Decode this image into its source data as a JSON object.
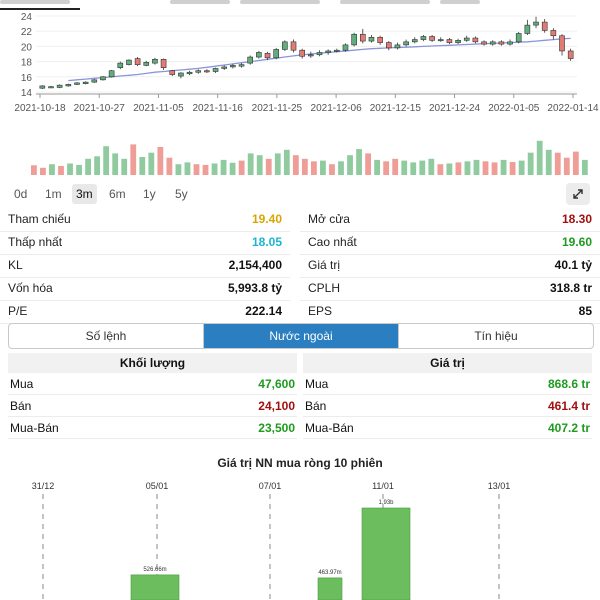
{
  "chart_data": [
    {
      "type": "candlestick",
      "yticks": [
        14,
        16,
        18,
        20,
        22,
        24
      ],
      "ylim": [
        14,
        24
      ],
      "x_ticks": [
        "2021-10-18",
        "2021-10-27",
        "2021-11-05",
        "2021-11-16",
        "2021-11-25",
        "2021-12-06",
        "2021-12-15",
        "2021-12-24",
        "2022-01-05",
        "2022-01-14"
      ],
      "ma": [
        15.5,
        15.6,
        15.7,
        15.8,
        15.9,
        16.0,
        16.1,
        16.2,
        16.3,
        16.45,
        16.6,
        16.7,
        16.8,
        16.9,
        17.0,
        17.1,
        17.25,
        17.4,
        17.55,
        17.7,
        17.85,
        18.0,
        18.15,
        18.3,
        18.45,
        18.6,
        18.75,
        18.9,
        19.0,
        19.1,
        19.2,
        19.3,
        19.4,
        19.5,
        19.6,
        19.7,
        19.75,
        19.8,
        19.85,
        19.9,
        19.95,
        20.0,
        20.05,
        20.1,
        20.15,
        20.2,
        20.25,
        20.3,
        20.35,
        20.4,
        20.45,
        20.5,
        20.55,
        20.6,
        20.7,
        20.8,
        20.9,
        21.0,
        21.05
      ],
      "candles": [
        [
          14.5,
          14.8,
          14.9,
          14.4
        ],
        [
          14.7,
          14.7,
          14.8,
          14.5
        ],
        [
          14.6,
          14.9,
          15.0,
          14.5
        ],
        [
          14.8,
          15.0,
          15.1,
          14.7
        ],
        [
          15.0,
          15.2,
          15.3,
          14.9
        ],
        [
          15.1,
          15.3,
          15.4,
          15.0
        ],
        [
          15.3,
          15.6,
          15.7,
          15.2
        ],
        [
          15.6,
          16.0,
          16.1,
          15.5
        ],
        [
          16.0,
          16.8,
          16.9,
          15.9
        ],
        [
          17.2,
          17.8,
          18.0,
          17.0
        ],
        [
          17.6,
          18.2,
          18.3,
          17.5
        ],
        [
          18.4,
          17.6,
          18.6,
          17.4
        ],
        [
          17.5,
          17.9,
          18.1,
          17.4
        ],
        [
          17.8,
          18.3,
          18.5,
          17.6
        ],
        [
          18.3,
          17.2,
          18.4,
          16.9
        ],
        [
          16.8,
          16.3,
          16.9,
          16.1
        ],
        [
          16.1,
          16.5,
          16.6,
          15.8
        ],
        [
          16.4,
          16.6,
          16.8,
          16.2
        ],
        [
          16.6,
          16.8,
          17.0,
          16.4
        ],
        [
          16.8,
          16.7,
          17.0,
          16.5
        ],
        [
          16.7,
          17.1,
          17.2,
          16.5
        ],
        [
          17.1,
          17.3,
          17.5,
          16.9
        ],
        [
          17.3,
          17.5,
          17.7,
          17.1
        ],
        [
          17.4,
          17.6,
          17.8,
          17.2
        ],
        [
          17.8,
          18.6,
          18.8,
          17.6
        ],
        [
          18.6,
          19.2,
          19.4,
          18.4
        ],
        [
          19.1,
          18.5,
          19.3,
          18.2
        ],
        [
          18.5,
          19.6,
          19.8,
          18.3
        ],
        [
          19.6,
          20.6,
          20.8,
          19.4
        ],
        [
          20.6,
          19.5,
          20.9,
          19.2
        ],
        [
          19.5,
          18.7,
          19.7,
          18.4
        ],
        [
          18.8,
          18.9,
          19.3,
          18.5
        ],
        [
          18.9,
          19.2,
          19.5,
          18.7
        ],
        [
          19.2,
          19.4,
          19.6,
          18.9
        ],
        [
          19.4,
          19.5,
          19.7,
          19.2
        ],
        [
          19.5,
          20.2,
          20.4,
          19.3
        ],
        [
          20.2,
          21.6,
          21.8,
          20.0
        ],
        [
          21.6,
          20.7,
          22.3,
          20.4
        ],
        [
          20.7,
          21.2,
          21.5,
          20.5
        ],
        [
          21.2,
          20.5,
          21.4,
          20.2
        ],
        [
          20.5,
          19.8,
          20.7,
          19.5
        ],
        [
          19.8,
          20.2,
          20.5,
          19.6
        ],
        [
          20.2,
          20.6,
          20.9,
          20.0
        ],
        [
          20.6,
          20.9,
          21.2,
          20.4
        ],
        [
          20.9,
          21.3,
          21.5,
          20.7
        ],
        [
          21.3,
          20.8,
          21.5,
          20.6
        ],
        [
          20.8,
          20.9,
          21.2,
          20.6
        ],
        [
          20.9,
          20.5,
          21.1,
          20.3
        ],
        [
          20.5,
          20.8,
          21.0,
          20.3
        ],
        [
          20.8,
          21.1,
          21.4,
          20.6
        ],
        [
          21.1,
          20.6,
          21.3,
          20.4
        ],
        [
          20.6,
          20.3,
          20.8,
          20.1
        ],
        [
          20.3,
          20.6,
          20.8,
          20.1
        ],
        [
          20.6,
          20.3,
          20.8,
          20.1
        ],
        [
          20.3,
          20.6,
          20.9,
          20.1
        ],
        [
          20.6,
          21.7,
          21.9,
          20.4
        ],
        [
          21.7,
          22.8,
          23.5,
          21.5
        ],
        [
          22.8,
          23.2,
          23.9,
          22.4
        ],
        [
          23.2,
          22.1,
          23.6,
          21.8
        ],
        [
          22.1,
          21.4,
          22.4,
          20.9
        ],
        [
          21.4,
          19.4,
          21.6,
          18.8
        ],
        [
          19.4,
          18.4,
          19.7,
          18.1
        ]
      ],
      "volume": [
        {
          "v": 0.27,
          "up": false
        },
        {
          "v": 0.2,
          "up": false
        },
        {
          "v": 0.3,
          "up": true
        },
        {
          "v": 0.25,
          "up": false
        },
        {
          "v": 0.32,
          "up": true
        },
        {
          "v": 0.28,
          "up": true
        },
        {
          "v": 0.45,
          "up": true
        },
        {
          "v": 0.52,
          "up": true
        },
        {
          "v": 0.8,
          "up": true
        },
        {
          "v": 0.6,
          "up": true
        },
        {
          "v": 0.45,
          "up": true
        },
        {
          "v": 0.85,
          "up": false
        },
        {
          "v": 0.5,
          "up": true
        },
        {
          "v": 0.62,
          "up": true
        },
        {
          "v": 0.78,
          "up": false
        },
        {
          "v": 0.48,
          "up": false
        },
        {
          "v": 0.3,
          "up": true
        },
        {
          "v": 0.35,
          "up": true
        },
        {
          "v": 0.3,
          "up": false
        },
        {
          "v": 0.28,
          "up": false
        },
        {
          "v": 0.32,
          "up": true
        },
        {
          "v": 0.42,
          "up": true
        },
        {
          "v": 0.34,
          "up": true
        },
        {
          "v": 0.4,
          "up": false
        },
        {
          "v": 0.6,
          "up": true
        },
        {
          "v": 0.55,
          "up": true
        },
        {
          "v": 0.45,
          "up": false
        },
        {
          "v": 0.6,
          "up": true
        },
        {
          "v": 0.7,
          "up": true
        },
        {
          "v": 0.55,
          "up": false
        },
        {
          "v": 0.45,
          "up": false
        },
        {
          "v": 0.38,
          "up": false
        },
        {
          "v": 0.4,
          "up": true
        },
        {
          "v": 0.3,
          "up": false
        },
        {
          "v": 0.38,
          "up": true
        },
        {
          "v": 0.55,
          "up": true
        },
        {
          "v": 0.72,
          "up": true
        },
        {
          "v": 0.6,
          "up": false
        },
        {
          "v": 0.42,
          "up": true
        },
        {
          "v": 0.38,
          "up": false
        },
        {
          "v": 0.45,
          "up": false
        },
        {
          "v": 0.4,
          "up": true
        },
        {
          "v": 0.35,
          "up": true
        },
        {
          "v": 0.4,
          "up": true
        },
        {
          "v": 0.45,
          "up": true
        },
        {
          "v": 0.3,
          "up": false
        },
        {
          "v": 0.32,
          "up": true
        },
        {
          "v": 0.35,
          "up": false
        },
        {
          "v": 0.38,
          "up": true
        },
        {
          "v": 0.42,
          "up": true
        },
        {
          "v": 0.38,
          "up": false
        },
        {
          "v": 0.35,
          "up": false
        },
        {
          "v": 0.42,
          "up": true
        },
        {
          "v": 0.36,
          "up": false
        },
        {
          "v": 0.4,
          "up": true
        },
        {
          "v": 0.62,
          "up": true
        },
        {
          "v": 0.95,
          "up": true
        },
        {
          "v": 0.7,
          "up": true
        },
        {
          "v": 0.62,
          "up": false
        },
        {
          "v": 0.48,
          "up": false
        },
        {
          "v": 0.65,
          "up": false
        },
        {
          "v": 0.42,
          "up": true
        }
      ]
    },
    {
      "type": "bar",
      "title": "Giá trị NN mua ròng 10 phiên",
      "categories": [
        "31/12",
        "05/01",
        "07/01",
        "11/01",
        "13/01"
      ],
      "bars": [
        {
          "label": "526.66m",
          "value": 0.52666
        },
        {
          "label": "463.97m",
          "value": 0.46397
        },
        {
          "label": "1.93b",
          "value": 1.93
        }
      ]
    }
  ],
  "ranges": [
    "0d",
    "1m",
    "3m",
    "6m",
    "1y",
    "5y"
  ],
  "active_range": "3m",
  "stats": {
    "left": [
      {
        "label": "Tham chiếu",
        "value": "19.40",
        "color": "yellow"
      },
      {
        "label": "Thấp nhất",
        "value": "18.05",
        "color": "cyan"
      },
      {
        "label": "KL",
        "value": "2,154,400",
        "color": "black"
      },
      {
        "label": "Vốn hóa",
        "value": "5,993.8 tỷ",
        "color": "black"
      },
      {
        "label": "P/E",
        "value": "222.14",
        "color": "black"
      }
    ],
    "right": [
      {
        "label": "Mở cửa",
        "value": "18.30",
        "color": "red"
      },
      {
        "label": "Cao nhất",
        "value": "19.60",
        "color": "green"
      },
      {
        "label": "Giá trị",
        "value": "40.1 tỷ",
        "color": "black"
      },
      {
        "label": "CPLH",
        "value": "318.8 tr",
        "color": "black"
      },
      {
        "label": "EPS",
        "value": "85",
        "color": "black"
      }
    ]
  },
  "tabs": [
    "Số lệnh",
    "Nước ngoài",
    "Tín hiệu"
  ],
  "active_tab": "Nước ngoài",
  "khoi_luong": {
    "header": "Khối lượng",
    "rows": [
      {
        "label": "Mua",
        "value": "47,600",
        "color": "green"
      },
      {
        "label": "Bán",
        "value": "24,100",
        "color": "red"
      },
      {
        "label": "Mua-Bán",
        "value": "23,500",
        "color": "green"
      }
    ]
  },
  "gia_tri": {
    "header": "Giá trị",
    "rows": [
      {
        "label": "Mua",
        "value": "868.6 tr",
        "color": "green"
      },
      {
        "label": "Bán",
        "value": "461.4 tr",
        "color": "red"
      },
      {
        "label": "Mua-Bán",
        "value": "407.2 tr",
        "color": "green"
      }
    ]
  },
  "colors": {
    "up": "#5fae7c",
    "down": "#e27b74",
    "up_vol": "#8fcb9e",
    "down_vol": "#ee9d97",
    "ma": "#8a96d8",
    "bar": "#6cbd5e"
  }
}
